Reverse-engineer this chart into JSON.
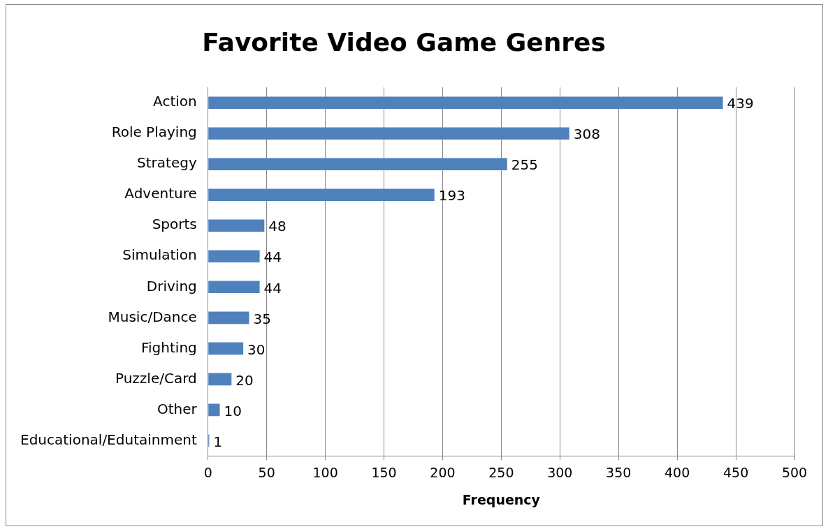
{
  "chart_data": {
    "type": "bar",
    "orientation": "horizontal",
    "title": "Favorite Video Game Genres",
    "xlabel": "Frequency",
    "categories": [
      "Action",
      "Role Playing",
      "Strategy",
      "Adventure",
      "Sports",
      "Simulation",
      "Driving",
      "Music/Dance",
      "Fighting",
      "Puzzle/Card",
      "Other",
      "Educational/Edutainment"
    ],
    "values": [
      439,
      308,
      255,
      193,
      48,
      44,
      44,
      35,
      30,
      20,
      10,
      1
    ],
    "color": "#4f81bd",
    "xlim": [
      0,
      500
    ],
    "xticks": [
      0,
      50,
      100,
      150,
      200,
      250,
      300,
      350,
      400,
      450,
      500
    ],
    "grid": "x",
    "legend": false,
    "data_labels": true
  }
}
